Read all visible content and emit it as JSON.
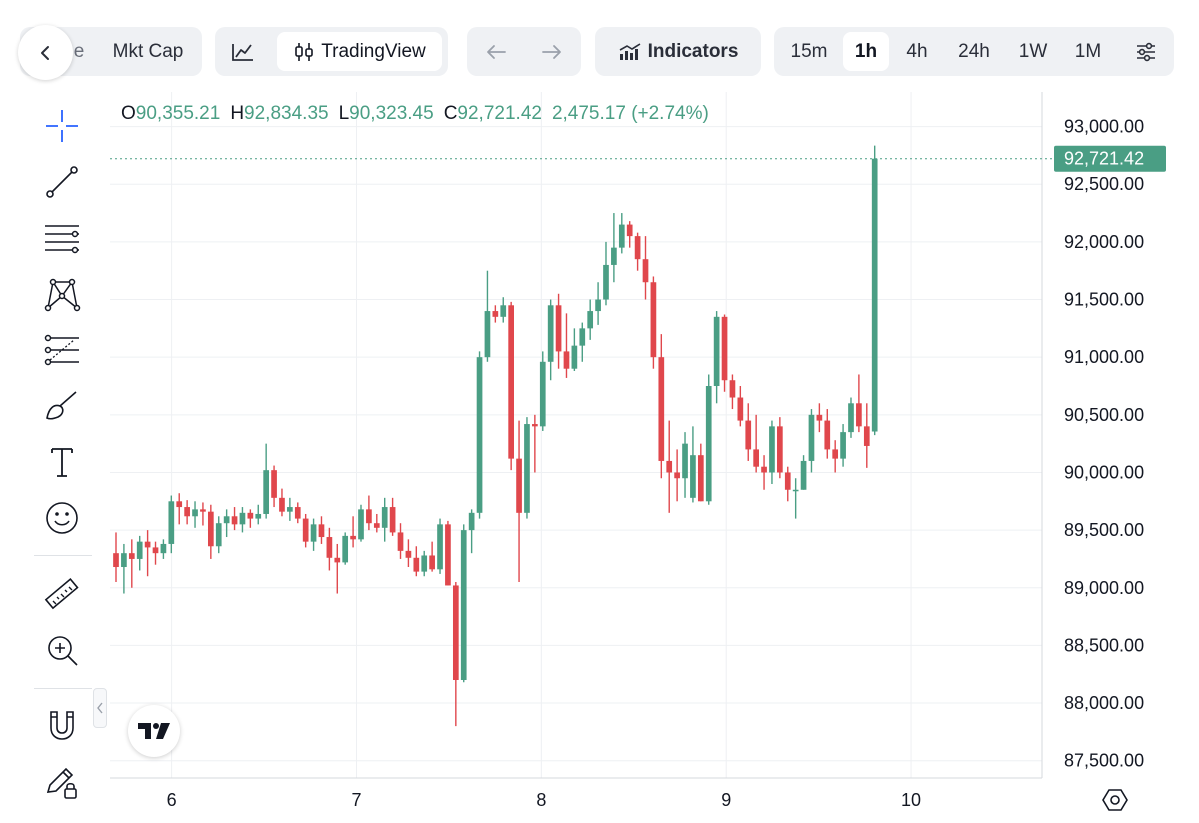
{
  "toolbar": {
    "chart_type_tabs": {
      "partial_label": "e",
      "mkt_cap_label": "Mkt Cap"
    },
    "chart_mode": {
      "line_icon": "line-chart-icon",
      "tradingview_label": "TradingView"
    },
    "indicators_label": "Indicators",
    "timeframes": [
      "15m",
      "1h",
      "4h",
      "24h",
      "1W",
      "1M"
    ],
    "active_timeframe": "1h"
  },
  "legend": {
    "open_key": "O",
    "open": "90,355.21",
    "high_key": "H",
    "high": "92,834.35",
    "low_key": "L",
    "low": "90,323.45",
    "close_key": "C",
    "close": "92,721.42",
    "change": "2,475.17 (+2.74%)"
  },
  "colors": {
    "up": "#4a9e84",
    "down": "#e0474c",
    "grid": "#eef0f3",
    "price_tag": "#4a9e84"
  },
  "chart_data": {
    "type": "candlestick",
    "x_ticks": [
      "6",
      "7",
      "8",
      "9",
      "10"
    ],
    "y_ticks": [
      "93,000.00",
      "92,500.00",
      "92,000.00",
      "91,500.00",
      "91,000.00",
      "90,500.00",
      "90,000.00",
      "89,500.00",
      "89,000.00",
      "88,500.00",
      "88,000.00",
      "87,500.00"
    ],
    "y_range": [
      87350,
      93300
    ],
    "x_range_hours": [
      -8,
      113
    ],
    "current_price": 92721.42,
    "current_price_label": "92,721.42",
    "candles": [
      [
        89300,
        89480,
        89050,
        89180
      ],
      [
        89180,
        89380,
        88950,
        89300
      ],
      [
        89300,
        89420,
        89000,
        89250
      ],
      [
        89250,
        89450,
        89150,
        89400
      ],
      [
        89400,
        89500,
        89100,
        89350
      ],
      [
        89350,
        89400,
        89200,
        89300
      ],
      [
        89300,
        89420,
        89250,
        89380
      ],
      [
        89380,
        89800,
        89300,
        89750
      ],
      [
        89750,
        89820,
        89550,
        89700
      ],
      [
        89700,
        89760,
        89550,
        89620
      ],
      [
        89620,
        89750,
        89520,
        89680
      ],
      [
        89680,
        89740,
        89540,
        89660
      ],
      [
        89660,
        89720,
        89250,
        89360
      ],
      [
        89360,
        89620,
        89300,
        89560
      ],
      [
        89560,
        89680,
        89440,
        89620
      ],
      [
        89620,
        89700,
        89500,
        89550
      ],
      [
        89550,
        89700,
        89480,
        89650
      ],
      [
        89650,
        89680,
        89520,
        89600
      ],
      [
        89600,
        89720,
        89550,
        89640
      ],
      [
        89640,
        90250,
        89600,
        90020
      ],
      [
        90020,
        90060,
        89700,
        89780
      ],
      [
        89780,
        89860,
        89620,
        89660
      ],
      [
        89660,
        89780,
        89580,
        89700
      ],
      [
        89700,
        89740,
        89560,
        89600
      ],
      [
        89600,
        89640,
        89350,
        89400
      ],
      [
        89400,
        89600,
        89320,
        89550
      ],
      [
        89550,
        89620,
        89380,
        89440
      ],
      [
        89440,
        89520,
        89150,
        89260
      ],
      [
        89260,
        89380,
        88950,
        89220
      ],
      [
        89220,
        89480,
        89200,
        89450
      ],
      [
        89450,
        89620,
        89350,
        89420
      ],
      [
        89420,
        89720,
        89400,
        89680
      ],
      [
        89680,
        89800,
        89500,
        89560
      ],
      [
        89560,
        89640,
        89480,
        89520
      ],
      [
        89520,
        89780,
        89400,
        89700
      ],
      [
        89700,
        89780,
        89450,
        89480
      ],
      [
        89480,
        89560,
        89250,
        89320
      ],
      [
        89320,
        89420,
        89180,
        89260
      ],
      [
        89260,
        89360,
        89100,
        89140
      ],
      [
        89140,
        89320,
        89100,
        89280
      ],
      [
        89280,
        89400,
        89140,
        89160
      ],
      [
        89160,
        89600,
        89120,
        89550
      ],
      [
        89550,
        89580,
        89020,
        89020
      ],
      [
        89020,
        89050,
        87800,
        88200
      ],
      [
        88200,
        89550,
        88180,
        89500
      ],
      [
        89500,
        89680,
        89300,
        89650
      ],
      [
        89650,
        91050,
        89600,
        91000
      ],
      [
        91000,
        91750,
        90960,
        91400
      ],
      [
        91400,
        91450,
        91300,
        91350
      ],
      [
        91350,
        91520,
        91300,
        91450
      ],
      [
        91450,
        91480,
        90020,
        90120
      ],
      [
        90120,
        90450,
        89050,
        89650
      ],
      [
        89650,
        90480,
        89600,
        90420
      ],
      [
        90420,
        90500,
        90000,
        90400
      ],
      [
        90400,
        91050,
        90360,
        90960
      ],
      [
        90960,
        91500,
        90800,
        91450
      ],
      [
        91450,
        91550,
        90900,
        91050
      ],
      [
        91050,
        91380,
        90820,
        90900
      ],
      [
        90900,
        91250,
        90880,
        91100
      ],
      [
        91100,
        91300,
        90960,
        91250
      ],
      [
        91250,
        91500,
        91150,
        91400
      ],
      [
        91400,
        91650,
        91280,
        91500
      ],
      [
        91500,
        92000,
        91450,
        91800
      ],
      [
        91800,
        92250,
        91650,
        91950
      ],
      [
        91950,
        92250,
        91900,
        92150
      ],
      [
        92150,
        92180,
        91950,
        92050
      ],
      [
        92050,
        92080,
        91750,
        91850
      ],
      [
        91850,
        92050,
        91500,
        91650
      ],
      [
        91650,
        91700,
        90900,
        91000
      ],
      [
        91000,
        91200,
        89950,
        90100
      ],
      [
        90100,
        90450,
        89650,
        90000
      ],
      [
        90000,
        90200,
        89750,
        89950
      ],
      [
        89950,
        90350,
        89780,
        90250
      ],
      [
        89780,
        90400,
        89740,
        90150
      ],
      [
        90150,
        90250,
        89750,
        89750
      ],
      [
        89750,
        90850,
        89720,
        90750
      ],
      [
        90750,
        91400,
        90600,
        91350
      ],
      [
        91350,
        91370,
        90700,
        90800
      ],
      [
        90800,
        90850,
        90550,
        90650
      ],
      [
        90650,
        90750,
        90400,
        90450
      ],
      [
        90450,
        90600,
        90100,
        90200
      ],
      [
        90200,
        90500,
        90000,
        90050
      ],
      [
        90050,
        90150,
        89850,
        90000
      ],
      [
        90000,
        90450,
        89900,
        90400
      ],
      [
        90400,
        90480,
        89950,
        90000
      ],
      [
        90000,
        90050,
        89750,
        89850
      ],
      [
        89850,
        89950,
        89600,
        89850
      ],
      [
        89850,
        90150,
        89850,
        90100
      ],
      [
        90100,
        90550,
        90000,
        90500
      ],
      [
        90500,
        90600,
        90350,
        90450
      ],
      [
        90450,
        90550,
        90120,
        90200
      ],
      [
        90200,
        90280,
        90000,
        90120
      ],
      [
        90120,
        90420,
        90050,
        90350
      ],
      [
        90350,
        90650,
        90300,
        90600
      ],
      [
        90600,
        90850,
        90350,
        90400
      ],
      [
        90400,
        90600,
        90040,
        90230
      ],
      [
        90355.21,
        92834.35,
        90323.45,
        92721.42
      ]
    ]
  },
  "left_tools": [
    "crosshair-icon",
    "trend-line-icon",
    "horizontal-lines-icon",
    "pattern-icon",
    "fib-retracement-icon",
    "brush-icon",
    "text-icon",
    "emoji-icon",
    "ruler-icon",
    "zoom-in-icon",
    "magnet-icon",
    "lock-pencil-icon"
  ]
}
